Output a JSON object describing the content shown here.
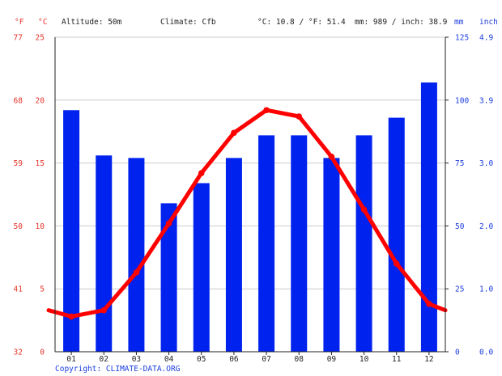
{
  "header": {
    "unit_f": "°F",
    "unit_c": "°C",
    "altitude": "Altitude: 50m",
    "climate": "Climate: Cfb",
    "temp_avg": "°C: 10.8 / °F: 51.4",
    "precip_total": "mm: 989 / inch: 38.9",
    "unit_mm": "mm",
    "unit_inch": "inch"
  },
  "copyright": "Copyright: CLIMATE-DATA.ORG",
  "colors": {
    "temperature": "#ff0000",
    "precipitation": "#0022ee",
    "temp_axis": "#e8332a",
    "precip_axis": "#1a3de0"
  },
  "chart_data": {
    "type": "bar",
    "categories": [
      "01",
      "02",
      "03",
      "04",
      "05",
      "06",
      "07",
      "08",
      "09",
      "10",
      "11",
      "12"
    ],
    "series": [
      {
        "type": "bar",
        "axis": "right",
        "values": [
          96,
          78,
          77,
          59,
          67,
          77,
          86,
          86,
          77,
          86,
          93,
          107
        ]
      },
      {
        "type": "line",
        "axis": "left",
        "values": [
          2.8,
          3.3,
          6.3,
          10.2,
          14.2,
          17.4,
          19.2,
          18.7,
          15.5,
          11.3,
          7.0,
          3.8
        ],
        "edge_start": 3.3,
        "edge_end": 3.3
      }
    ],
    "ylim_temp_c": [
      0,
      25
    ],
    "ylim_precip_mm": [
      0,
      125
    ],
    "yticks_f": [
      "32",
      "41",
      "50",
      "59",
      "68",
      "77"
    ],
    "yticks_c": [
      "0",
      "5",
      "10",
      "15",
      "20",
      "25"
    ],
    "yticks_mm": [
      "0",
      "25",
      "50",
      "75",
      "100",
      "125"
    ],
    "yticks_inch": [
      "0.0",
      "1.0",
      "2.0",
      "3.0",
      "3.9",
      "4.9"
    ],
    "grid": true
  }
}
